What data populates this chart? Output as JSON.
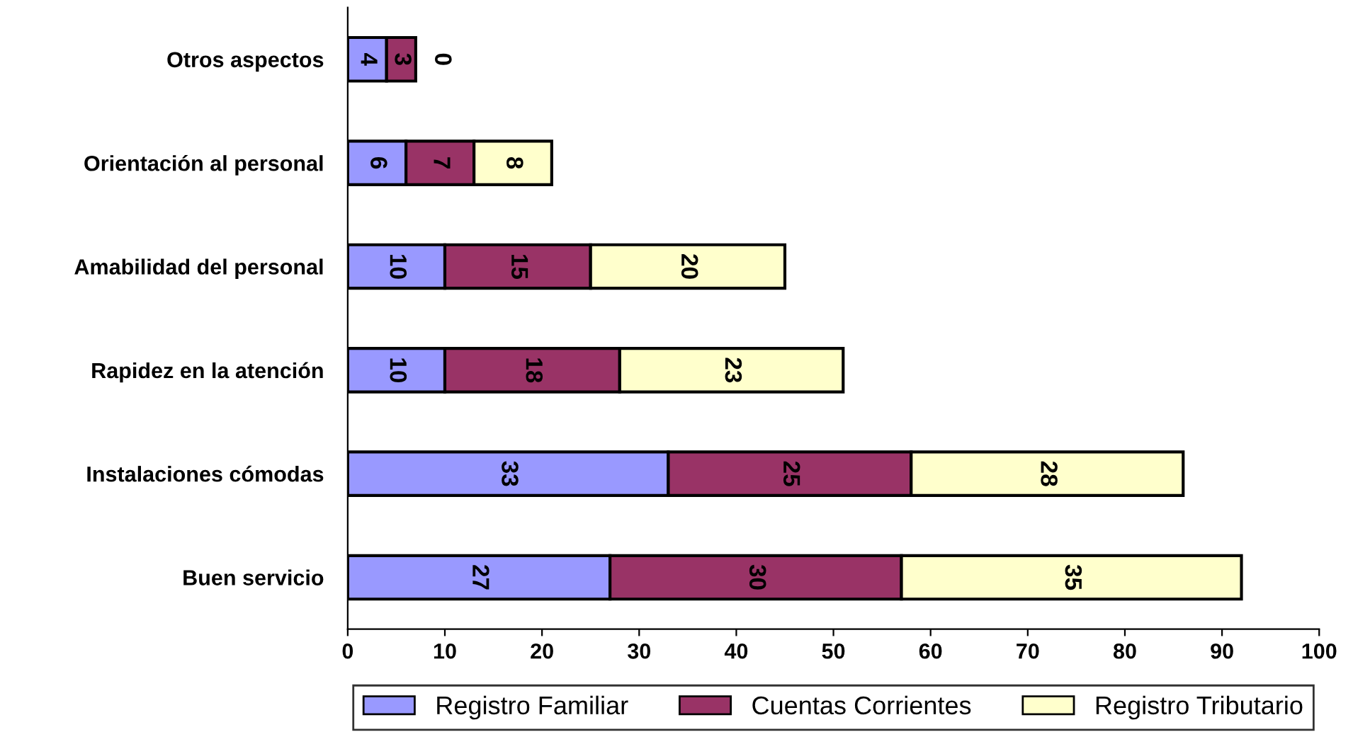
{
  "chart_data": {
    "type": "bar",
    "orientation": "horizontal",
    "stacked": true,
    "data_labels": true,
    "legend": "bottom",
    "grid": false,
    "categories": [
      "Otros aspectos",
      "Orientación al personal",
      "Amabilidad del personal",
      "Rapidez en la atención",
      "Instalaciones cómodas",
      "Buen servicio"
    ],
    "series": [
      {
        "name": "Registro Familiar",
        "color": "#9999ff",
        "values": [
          4,
          6,
          10,
          10,
          33,
          27
        ]
      },
      {
        "name": "Cuentas Corrientes",
        "color": "#993366",
        "values": [
          3,
          7,
          15,
          18,
          25,
          30
        ]
      },
      {
        "name": "Registro Tributario",
        "color": "#ffffcc",
        "values": [
          0,
          8,
          20,
          23,
          28,
          35
        ]
      }
    ],
    "xlim": [
      0,
      100
    ],
    "xticks": [
      0,
      10,
      20,
      30,
      40,
      50,
      60,
      70,
      80,
      90,
      100
    ]
  }
}
